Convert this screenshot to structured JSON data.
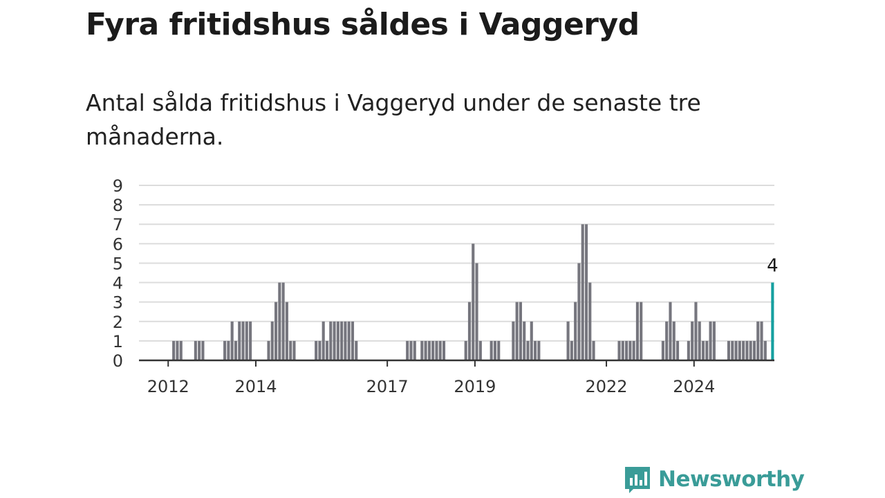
{
  "header": {
    "title": "Fyra fritidshus såldes i Vaggeryd",
    "subtitle": "Antal sålda fritidshus i Vaggeryd under de senaste tre månaderna."
  },
  "brand": {
    "name": "Newsworthy",
    "icon": "newsworthy-logo-icon",
    "color": "#3a9c98"
  },
  "colors": {
    "bar": "#76767e",
    "highlight": "#16a0a0",
    "grid": "#dcdcdc",
    "axis": "#333333"
  },
  "chart_data": {
    "type": "bar",
    "title": "Fyra fritidshus såldes i Vaggeryd",
    "subtitle": "Antal sålda fritidshus i Vaggeryd under de senaste tre månaderna.",
    "xlabel": "",
    "ylabel": "",
    "ylim": [
      0,
      9
    ],
    "yticks": [
      "0",
      "1",
      "2",
      "3",
      "4",
      "5",
      "6",
      "7",
      "8",
      "9"
    ],
    "grid": true,
    "x_range": [
      "2011-05",
      "2025-10"
    ],
    "xticks": [
      {
        "label": "2012",
        "x": "2012-01"
      },
      {
        "label": "2014",
        "x": "2014-01"
      },
      {
        "label": "2017",
        "x": "2017-01"
      },
      {
        "label": "2019",
        "x": "2019-01"
      },
      {
        "label": "2022",
        "x": "2022-01"
      },
      {
        "label": "2024",
        "x": "2024-01"
      }
    ],
    "highlight_label": "4",
    "series": [
      {
        "x": [
          "2012-02",
          "2012-03",
          "2012-04",
          "2012-08",
          "2012-09",
          "2012-10",
          "2013-04",
          "2013-05",
          "2013-06",
          "2013-07",
          "2013-08",
          "2013-09",
          "2013-10",
          "2013-11",
          "2014-04",
          "2014-05",
          "2014-06",
          "2014-07",
          "2014-08",
          "2014-09",
          "2014-10",
          "2014-11",
          "2015-05",
          "2015-06",
          "2015-07",
          "2015-08",
          "2015-09",
          "2015-10",
          "2015-11",
          "2015-12",
          "2016-01",
          "2016-02",
          "2016-03",
          "2016-04",
          "2017-06",
          "2017-07",
          "2017-08",
          "2017-10",
          "2017-11",
          "2017-12",
          "2018-01",
          "2018-02",
          "2018-03",
          "2018-04",
          "2018-10",
          "2018-11",
          "2018-12",
          "2019-01",
          "2019-02",
          "2019-05",
          "2019-06",
          "2019-07",
          "2019-11",
          "2019-12",
          "2020-01",
          "2020-02",
          "2020-03",
          "2020-04",
          "2020-05",
          "2020-06",
          "2021-02",
          "2021-03",
          "2021-04",
          "2021-05",
          "2021-06",
          "2021-07",
          "2021-08",
          "2021-09",
          "2022-04",
          "2022-05",
          "2022-06",
          "2022-07",
          "2022-08",
          "2022-09",
          "2022-10",
          "2023-04",
          "2023-05",
          "2023-06",
          "2023-07",
          "2023-08",
          "2023-11",
          "2023-12",
          "2024-01",
          "2024-02",
          "2024-03",
          "2024-04",
          "2024-05",
          "2024-06",
          "2024-10",
          "2024-11",
          "2024-12",
          "2025-01",
          "2025-02",
          "2025-03",
          "2025-04",
          "2025-05",
          "2025-06",
          "2025-07",
          "2025-08"
        ],
        "values": [
          1,
          1,
          1,
          1,
          1,
          1,
          1,
          1,
          2,
          1,
          2,
          2,
          2,
          2,
          1,
          2,
          3,
          4,
          4,
          3,
          1,
          1,
          1,
          1,
          2,
          1,
          2,
          2,
          2,
          2,
          2,
          2,
          2,
          1,
          1,
          1,
          1,
          1,
          1,
          1,
          1,
          1,
          1,
          1,
          1,
          3,
          6,
          5,
          1,
          1,
          1,
          1,
          2,
          3,
          3,
          2,
          1,
          2,
          1,
          1,
          2,
          1,
          3,
          5,
          7,
          7,
          4,
          1,
          1,
          1,
          1,
          1,
          1,
          3,
          3,
          1,
          2,
          3,
          2,
          1,
          1,
          2,
          3,
          2,
          1,
          1,
          2,
          2,
          1,
          1,
          1,
          1,
          1,
          1,
          1,
          1,
          2,
          2,
          1
        ]
      }
    ],
    "highlight": {
      "x": "2025-10",
      "value": 4
    }
  }
}
